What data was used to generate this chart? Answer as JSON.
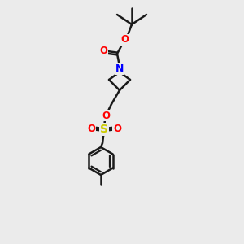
{
  "bg_color": "#ebebeb",
  "bond_color": "#1a1a1a",
  "N_color": "#0000ff",
  "O_color": "#ff0000",
  "S_color": "#cccc00",
  "line_width": 1.8,
  "figsize": [
    3.0,
    3.0
  ],
  "dpi": 100,
  "xlim": [
    0,
    10
  ],
  "ylim": [
    0,
    15
  ]
}
